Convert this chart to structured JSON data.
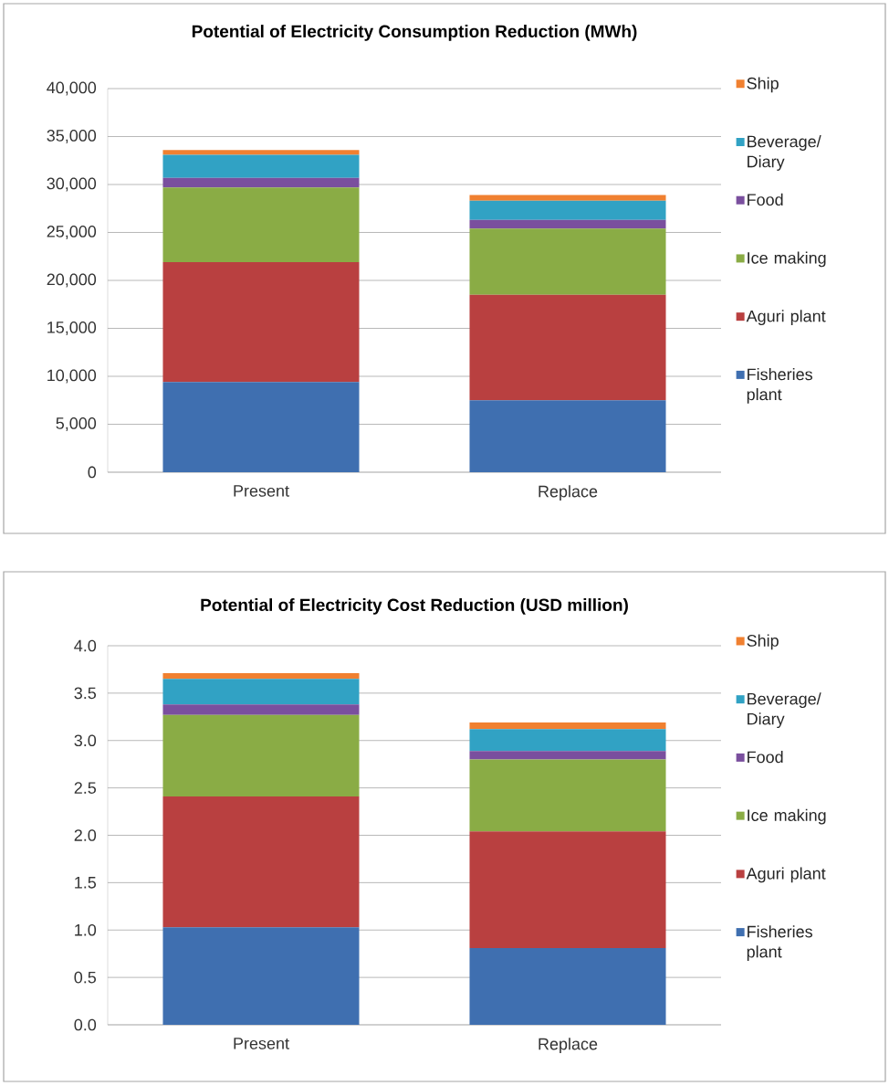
{
  "chart_data": [
    {
      "type": "bar",
      "stacked": true,
      "title": "Potential of Electricity Consumption Reduction (MWh)",
      "categories": [
        "Present",
        "Replace"
      ],
      "series": [
        {
          "name": "Fisheries plant",
          "color": "#3f6fb0",
          "values": [
            9400,
            7500
          ]
        },
        {
          "name": "Aguri plant",
          "color": "#b94040",
          "values": [
            12500,
            11000
          ]
        },
        {
          "name": "Ice making",
          "color": "#8aac45",
          "values": [
            7800,
            6900
          ]
        },
        {
          "name": "Food",
          "color": "#7a4f9e",
          "values": [
            1000,
            900
          ]
        },
        {
          "name": "Beverage/ Diary",
          "color": "#31a2c4",
          "values": [
            2400,
            2000
          ]
        },
        {
          "name": "Ship",
          "color": "#f08030",
          "values": [
            500,
            600
          ]
        }
      ],
      "ylim": [
        0,
        40000
      ],
      "yticks": [
        0,
        {
          "value": 5000,
          "label": "5,000"
        },
        {
          "value": 10000,
          "label": "10,000"
        },
        {
          "value": 15000,
          "label": "15,000"
        },
        {
          "value": 20000,
          "label": "20,000"
        },
        {
          "value": 25000,
          "label": "25,000"
        },
        {
          "value": 30000,
          "label": "30,000"
        },
        {
          "value": 35000,
          "label": "35,000"
        },
        {
          "value": 40000,
          "label": "40,000"
        }
      ],
      "grid": "y",
      "legend": "right"
    },
    {
      "type": "bar",
      "stacked": true,
      "title": "Potential of Electricity Cost Reduction (USD million)",
      "categories": [
        "Present",
        "Replace"
      ],
      "series": [
        {
          "name": "Fisheries plant",
          "color": "#3f6fb0",
          "values": [
            1.03,
            0.81
          ]
        },
        {
          "name": "Aguri plant",
          "color": "#b94040",
          "values": [
            1.38,
            1.23
          ]
        },
        {
          "name": "Ice making",
          "color": "#8aac45",
          "values": [
            0.86,
            0.76
          ]
        },
        {
          "name": "Food",
          "color": "#7a4f9e",
          "values": [
            0.11,
            0.09
          ]
        },
        {
          "name": "Beverage/ Diary",
          "color": "#31a2c4",
          "values": [
            0.27,
            0.23
          ]
        },
        {
          "name": "Ship",
          "color": "#f08030",
          "values": [
            0.06,
            0.07
          ]
        }
      ],
      "ylim": [
        0,
        4
      ],
      "yticks": [
        {
          "value": 0,
          "label": "0.0"
        },
        0.5,
        {
          "value": 1,
          "label": "1.0"
        },
        1.5,
        {
          "value": 2,
          "label": "2.0"
        },
        2.5,
        {
          "value": 3,
          "label": "3.0"
        },
        3.5,
        {
          "value": 4,
          "label": "4.0"
        }
      ],
      "grid": "y",
      "legend": "right"
    }
  ]
}
